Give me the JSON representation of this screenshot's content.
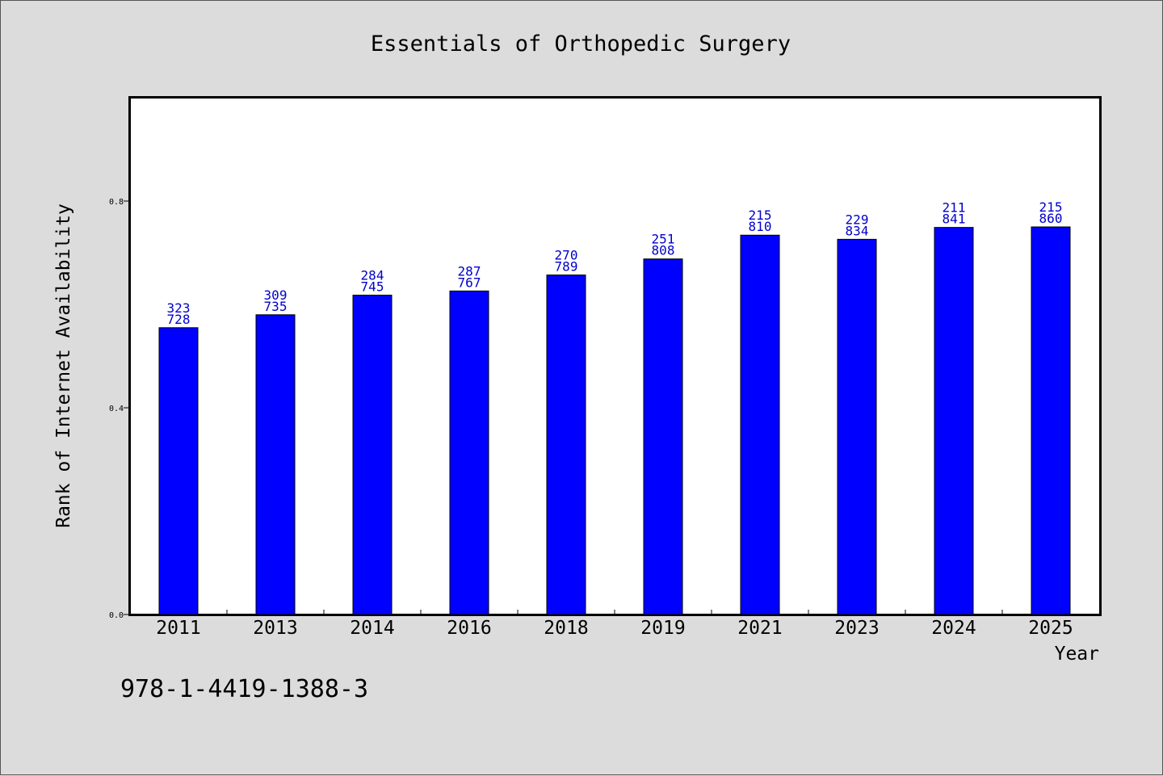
{
  "chart_data": {
    "type": "bar",
    "title": "Essentials of Orthopedic Surgery",
    "xlabel": "Year",
    "ylabel": "Rank of Internet Availability",
    "categories": [
      "2011",
      "2013",
      "2014",
      "2016",
      "2018",
      "2019",
      "2021",
      "2023",
      "2024",
      "2025"
    ],
    "values": [
      0.555,
      0.58,
      0.618,
      0.626,
      0.657,
      0.688,
      0.734,
      0.726,
      0.749,
      0.75
    ],
    "labels_top": [
      "323",
      "309",
      "284",
      "287",
      "270",
      "251",
      "215",
      "229",
      "211",
      "215"
    ],
    "labels_bottom": [
      "728",
      "735",
      "745",
      "767",
      "789",
      "808",
      "810",
      "834",
      "841",
      "860"
    ],
    "ylim": [
      0,
      1.0
    ],
    "yticks": [
      0.0,
      0.4,
      0.8
    ],
    "ytick_labels": [
      "0.0",
      "0.4",
      "0.8"
    ],
    "bar_color": "#0000ff",
    "label_color": "#0000cc",
    "grid": false
  },
  "footer": {
    "isbn": "978-1-4419-1388-3"
  }
}
